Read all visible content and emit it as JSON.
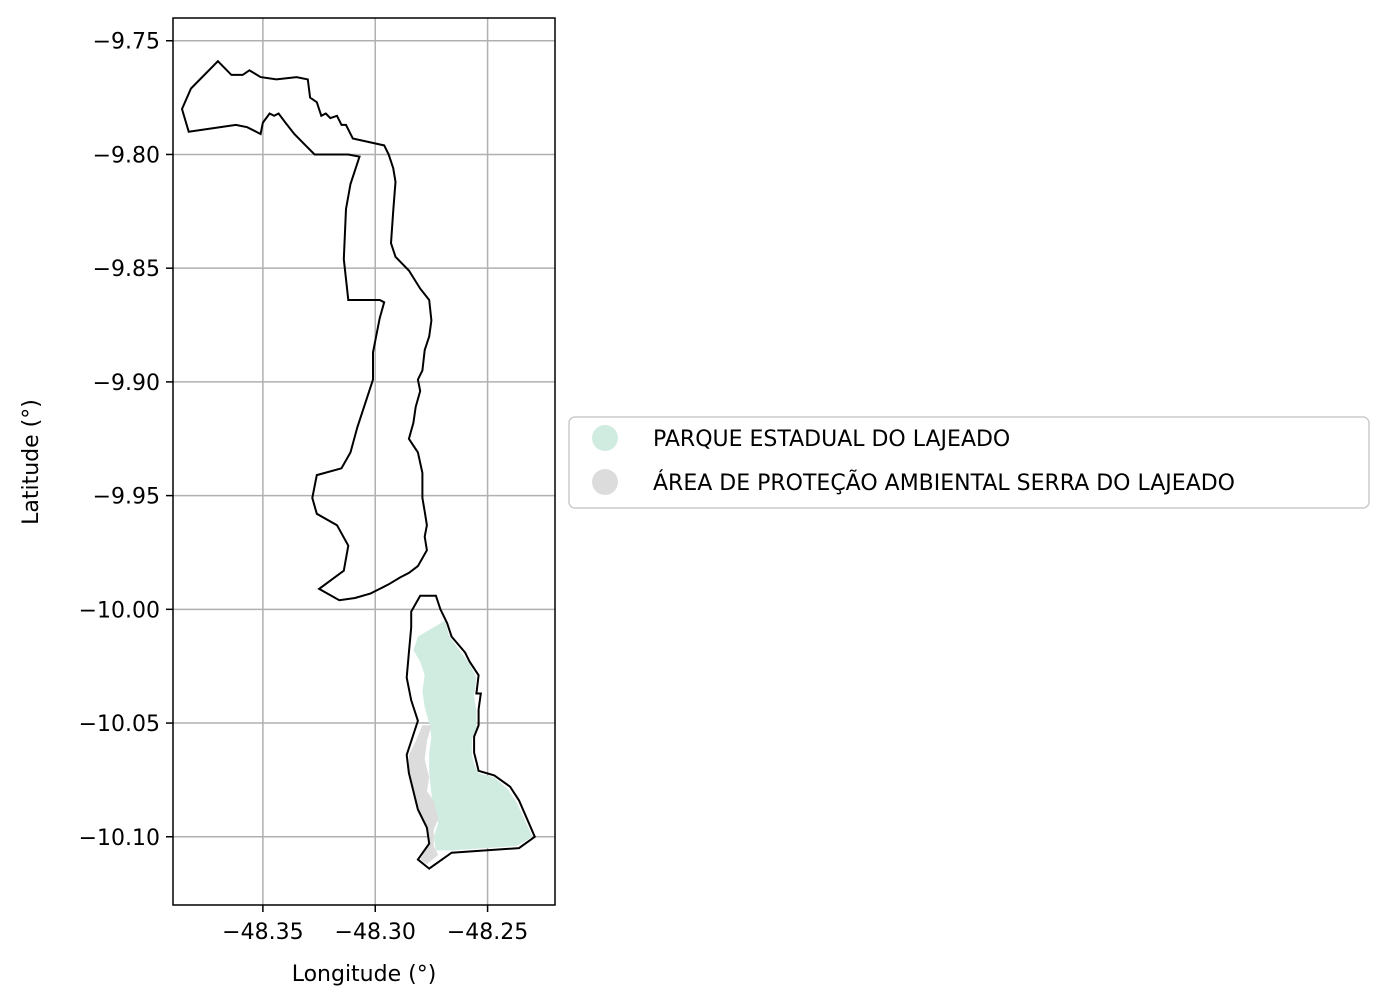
{
  "chart_data": {
    "type": "map",
    "xlabel": "Longitude (°)",
    "ylabel": "Latitude (°)",
    "xlim": [
      -48.39,
      -48.22
    ],
    "ylim": [
      -10.13,
      -9.74
    ],
    "grid": true,
    "x_ticks": [
      {
        "value": -48.35,
        "label": "−48.35"
      },
      {
        "value": -48.3,
        "label": "−48.30"
      },
      {
        "value": -48.25,
        "label": "−48.25"
      }
    ],
    "y_ticks": [
      {
        "value": -9.75,
        "label": "−9.75"
      },
      {
        "value": -9.8,
        "label": "−9.80"
      },
      {
        "value": -9.85,
        "label": "−9.85"
      },
      {
        "value": -9.9,
        "label": "−9.90"
      },
      {
        "value": -9.95,
        "label": "−9.95"
      },
      {
        "value": -10.0,
        "label": "−10.00"
      },
      {
        "value": -10.05,
        "label": "−10.05"
      },
      {
        "value": -10.1,
        "label": "−10.10"
      }
    ],
    "legend_position": "right-center",
    "legend": [
      {
        "label": "PARQUE ESTADUAL DO LAJEADO",
        "color": "#d0ebdf"
      },
      {
        "label": "ÁREA DE PROTEÇÃO AMBIENTAL SERRA DO LAJEADO",
        "color": "#dcdcdc"
      }
    ],
    "boundary_color": "#000000",
    "outline": [
      [
        -48.386,
        -9.78
      ],
      [
        -48.382,
        -9.771
      ],
      [
        -48.37,
        -9.759
      ],
      [
        -48.364,
        -9.765
      ],
      [
        -48.359,
        -9.765
      ],
      [
        -48.356,
        -9.763
      ],
      [
        -48.351,
        -9.766
      ],
      [
        -48.344,
        -9.767
      ],
      [
        -48.335,
        -9.766
      ],
      [
        -48.33,
        -9.767
      ],
      [
        -48.329,
        -9.775
      ],
      [
        -48.326,
        -9.777
      ],
      [
        -48.324,
        -9.783
      ],
      [
        -48.322,
        -9.782
      ],
      [
        -48.32,
        -9.784
      ],
      [
        -48.317,
        -9.783
      ],
      [
        -48.315,
        -9.787
      ],
      [
        -48.313,
        -9.787
      ],
      [
        -48.31,
        -9.793
      ],
      [
        -48.296,
        -9.796
      ],
      [
        -48.294,
        -9.8
      ],
      [
        -48.292,
        -9.806
      ],
      [
        -48.291,
        -9.812
      ],
      [
        -48.292,
        -9.825
      ],
      [
        -48.293,
        -9.839
      ],
      [
        -48.291,
        -9.845
      ],
      [
        -48.285,
        -9.851
      ],
      [
        -48.28,
        -9.859
      ],
      [
        -48.276,
        -9.864
      ],
      [
        -48.275,
        -9.873
      ],
      [
        -48.276,
        -9.88
      ],
      [
        -48.278,
        -9.886
      ],
      [
        -48.279,
        -9.895
      ],
      [
        -48.281,
        -9.899
      ],
      [
        -48.28,
        -9.904
      ],
      [
        -48.282,
        -9.911
      ],
      [
        -48.283,
        -9.918
      ],
      [
        -48.285,
        -9.925
      ],
      [
        -48.281,
        -9.931
      ],
      [
        -48.279,
        -9.94
      ],
      [
        -48.279,
        -9.946
      ],
      [
        -48.279,
        -9.951
      ],
      [
        -48.278,
        -9.957
      ],
      [
        -48.277,
        -9.963
      ],
      [
        -48.278,
        -9.968
      ],
      [
        -48.277,
        -9.974
      ],
      [
        -48.281,
        -9.981
      ],
      [
        -48.285,
        -9.984
      ],
      [
        -48.289,
        -9.986
      ],
      [
        -48.294,
        -9.989
      ],
      [
        -48.302,
        -9.993
      ],
      [
        -48.309,
        -9.995
      ],
      [
        -48.316,
        -9.996
      ],
      [
        -48.325,
        -9.991
      ],
      [
        -48.314,
        -9.983
      ],
      [
        -48.312,
        -9.972
      ],
      [
        -48.317,
        -9.963
      ],
      [
        -48.326,
        -9.958
      ],
      [
        -48.328,
        -9.951
      ],
      [
        -48.326,
        -9.941
      ],
      [
        -48.315,
        -9.938
      ],
      [
        -48.311,
        -9.931
      ],
      [
        -48.308,
        -9.92
      ],
      [
        -48.301,
        -9.899
      ],
      [
        -48.301,
        -9.887
      ],
      [
        -48.298,
        -9.872
      ],
      [
        -48.296,
        -9.865
      ],
      [
        -48.298,
        -9.864
      ],
      [
        -48.307,
        -9.864
      ],
      [
        -48.312,
        -9.864
      ],
      [
        -48.314,
        -9.846
      ],
      [
        -48.313,
        -9.824
      ],
      [
        -48.311,
        -9.813
      ],
      [
        -48.307,
        -9.801
      ],
      [
        -48.312,
        -9.8
      ],
      [
        -48.327,
        -9.8
      ],
      [
        -48.331,
        -9.796
      ],
      [
        -48.336,
        -9.791
      ],
      [
        -48.34,
        -9.786
      ],
      [
        -48.343,
        -9.782
      ],
      [
        -48.345,
        -9.783
      ],
      [
        -48.347,
        -9.782
      ],
      [
        -48.35,
        -9.786
      ],
      [
        -48.351,
        -9.791
      ],
      [
        -48.357,
        -9.788
      ],
      [
        -48.362,
        -9.787
      ],
      [
        -48.383,
        -9.79
      ],
      [
        -48.386,
        -9.78
      ]
    ],
    "south_outline": [
      [
        -48.28,
        -9.994
      ],
      [
        -48.273,
        -9.994
      ],
      [
        -48.271,
        -10.0
      ],
      [
        -48.268,
        -10.006
      ],
      [
        -48.266,
        -10.012
      ],
      [
        -48.26,
        -10.019
      ],
      [
        -48.258,
        -10.023
      ],
      [
        -48.254,
        -10.029
      ],
      [
        -48.255,
        -10.037
      ],
      [
        -48.253,
        -10.037
      ],
      [
        -48.254,
        -10.044
      ],
      [
        -48.254,
        -10.051
      ],
      [
        -48.256,
        -10.056
      ],
      [
        -48.256,
        -10.063
      ],
      [
        -48.255,
        -10.067
      ],
      [
        -48.254,
        -10.071
      ],
      [
        -48.247,
        -10.073
      ],
      [
        -48.24,
        -10.078
      ],
      [
        -48.236,
        -10.084
      ],
      [
        -48.229,
        -10.1
      ],
      [
        -48.236,
        -10.105
      ],
      [
        -48.266,
        -10.107
      ],
      [
        -48.276,
        -10.114
      ],
      [
        -48.281,
        -10.11
      ],
      [
        -48.276,
        -10.103
      ],
      [
        -48.277,
        -10.096
      ],
      [
        -48.281,
        -10.088
      ],
      [
        -48.283,
        -10.08
      ],
      [
        -48.285,
        -10.072
      ],
      [
        -48.286,
        -10.064
      ],
      [
        -48.284,
        -10.058
      ],
      [
        -48.281,
        -10.049
      ],
      [
        -48.284,
        -10.04
      ],
      [
        -48.286,
        -10.03
      ],
      [
        -48.285,
        -10.019
      ],
      [
        -48.284,
        -10.008
      ],
      [
        -48.284,
        -10.001
      ],
      [
        -48.28,
        -9.994
      ]
    ],
    "parque_estadual": [
      [
        -48.281,
        -10.012
      ],
      [
        -48.269,
        -10.005
      ],
      [
        -48.267,
        -10.012
      ],
      [
        -48.261,
        -10.02
      ],
      [
        -48.258,
        -10.024
      ],
      [
        -48.255,
        -10.03
      ],
      [
        -48.256,
        -10.038
      ],
      [
        -48.255,
        -10.045
      ],
      [
        -48.255,
        -10.052
      ],
      [
        -48.257,
        -10.057
      ],
      [
        -48.257,
        -10.064
      ],
      [
        -48.256,
        -10.068
      ],
      [
        -48.254,
        -10.072
      ],
      [
        -48.247,
        -10.074
      ],
      [
        -48.241,
        -10.079
      ],
      [
        -48.237,
        -10.085
      ],
      [
        -48.23,
        -10.1
      ],
      [
        -48.237,
        -10.104
      ],
      [
        -48.266,
        -10.106
      ],
      [
        -48.273,
        -10.106
      ],
      [
        -48.274,
        -10.1
      ],
      [
        -48.272,
        -10.094
      ],
      [
        -48.274,
        -10.088
      ],
      [
        -48.275,
        -10.081
      ],
      [
        -48.276,
        -10.072
      ],
      [
        -48.276,
        -10.063
      ],
      [
        -48.275,
        -10.056
      ],
      [
        -48.276,
        -10.05
      ],
      [
        -48.278,
        -10.043
      ],
      [
        -48.279,
        -10.036
      ],
      [
        -48.278,
        -10.029
      ],
      [
        -48.28,
        -10.023
      ],
      [
        -48.283,
        -10.018
      ],
      [
        -48.281,
        -10.012
      ]
    ],
    "apa_serra": [
      [
        -48.279,
        -10.051
      ],
      [
        -48.275,
        -10.051
      ],
      [
        -48.277,
        -10.058
      ],
      [
        -48.278,
        -10.066
      ],
      [
        -48.276,
        -10.074
      ],
      [
        -48.277,
        -10.08
      ],
      [
        -48.274,
        -10.084
      ],
      [
        -48.272,
        -10.092
      ],
      [
        -48.274,
        -10.097
      ],
      [
        -48.274,
        -10.104
      ],
      [
        -48.272,
        -10.108
      ],
      [
        -48.277,
        -10.112
      ],
      [
        -48.28,
        -10.11
      ],
      [
        -48.276,
        -10.103
      ],
      [
        -48.277,
        -10.096
      ],
      [
        -48.281,
        -10.088
      ],
      [
        -48.283,
        -10.08
      ],
      [
        -48.285,
        -10.072
      ],
      [
        -48.285,
        -10.064
      ],
      [
        -48.282,
        -10.058
      ],
      [
        -48.279,
        -10.051
      ]
    ]
  }
}
